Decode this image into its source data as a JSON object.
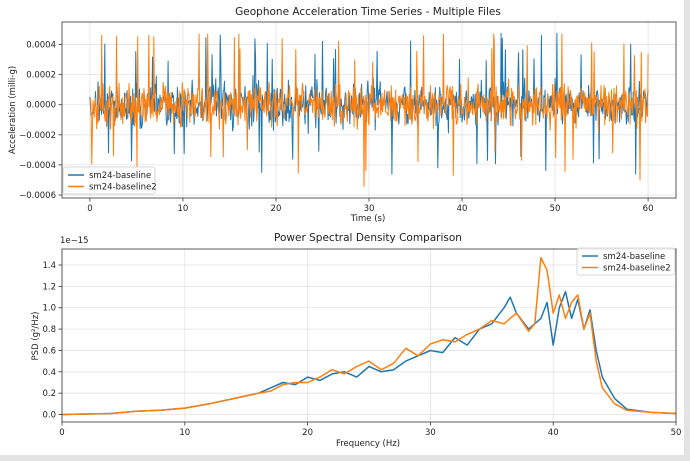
{
  "chart_data": [
    {
      "type": "line",
      "title": "Geophone Acceleration Time Series - Multiple Files",
      "xlabel": "Time (s)",
      "ylabel": "Acceleration (milli-g)",
      "xlim": [
        -3,
        63
      ],
      "ylim": [
        -0.00062,
        0.00055
      ],
      "xticks": [
        0,
        10,
        20,
        30,
        40,
        50,
        60
      ],
      "xtick_labels": [
        "0",
        "10",
        "20",
        "30",
        "40",
        "50",
        "60"
      ],
      "yticks": [
        -0.0006,
        -0.0004,
        -0.0002,
        0.0,
        0.0002,
        0.0004
      ],
      "ytick_labels": [
        "−0.0006",
        "−0.0004",
        "−0.0002",
        "0.0000",
        "0.0002",
        "0.0004"
      ],
      "grid": true,
      "legend_position": "lower-left",
      "series": [
        {
          "name": "sm24-baseline",
          "color": "#1f77b4",
          "style": "noise",
          "x_range": [
            0,
            60
          ],
          "envelope_typical": 0.00018,
          "max": 0.00052,
          "min": -0.00047
        },
        {
          "name": "sm24-baseline2",
          "color": "#ff7f0e",
          "style": "noise",
          "x_range": [
            0,
            60
          ],
          "envelope_typical": 0.00018,
          "max": 0.00047,
          "min": -0.00057
        }
      ]
    },
    {
      "type": "line",
      "title": "Power Spectral Density Comparison",
      "xlabel": "Frequency (Hz)",
      "ylabel": "PSD (g²/Hz)",
      "y_offset_label": "1e−15",
      "xlim": [
        0,
        50
      ],
      "ylim": [
        -0.07,
        1.55
      ],
      "xticks": [
        0,
        10,
        20,
        30,
        40,
        50
      ],
      "xtick_labels": [
        "0",
        "10",
        "20",
        "30",
        "40",
        "50"
      ],
      "yticks": [
        0.0,
        0.2,
        0.4,
        0.6,
        0.8,
        1.0,
        1.2,
        1.4
      ],
      "ytick_labels": [
        "0.0",
        "0.2",
        "0.4",
        "0.6",
        "0.8",
        "1.0",
        "1.2",
        "1.4"
      ],
      "grid": true,
      "legend_position": "top-right",
      "series": [
        {
          "name": "sm24-baseline",
          "color": "#1f77b4",
          "x": [
            0,
            2,
            4,
            5,
            6,
            8,
            10,
            12,
            14,
            16,
            17,
            18,
            19,
            20,
            21,
            22,
            23,
            24,
            25,
            26,
            27,
            28,
            29,
            30,
            31,
            32,
            33,
            34,
            35,
            36,
            36.5,
            37,
            38,
            39,
            39.5,
            40,
            40.5,
            41,
            41.5,
            42,
            42.5,
            43,
            43.5,
            44,
            45,
            46,
            48,
            50
          ],
          "y": [
            0.0,
            0.005,
            0.01,
            0.02,
            0.03,
            0.04,
            0.06,
            0.1,
            0.15,
            0.2,
            0.25,
            0.3,
            0.28,
            0.35,
            0.32,
            0.38,
            0.4,
            0.35,
            0.45,
            0.4,
            0.42,
            0.5,
            0.55,
            0.6,
            0.58,
            0.72,
            0.65,
            0.8,
            0.85,
            1.0,
            1.1,
            0.95,
            0.8,
            0.9,
            1.05,
            0.65,
            1.0,
            1.15,
            0.9,
            1.08,
            0.8,
            0.98,
            0.6,
            0.35,
            0.15,
            0.05,
            0.02,
            0.01
          ]
        },
        {
          "name": "sm24-baseline2",
          "color": "#ff7f0e",
          "x": [
            0,
            2,
            4,
            5,
            6,
            8,
            10,
            12,
            14,
            16,
            17,
            18,
            19,
            20,
            21,
            22,
            23,
            24,
            25,
            26,
            27,
            28,
            29,
            30,
            31,
            32,
            33,
            34,
            35,
            36,
            37,
            38,
            38.5,
            39,
            39.5,
            40,
            40.5,
            41,
            41.5,
            42,
            42.5,
            43,
            43.5,
            44,
            45,
            46,
            48,
            50
          ],
          "y": [
            0.0,
            0.005,
            0.01,
            0.02,
            0.03,
            0.04,
            0.06,
            0.1,
            0.15,
            0.2,
            0.22,
            0.28,
            0.3,
            0.3,
            0.35,
            0.42,
            0.38,
            0.45,
            0.5,
            0.42,
            0.48,
            0.62,
            0.55,
            0.66,
            0.7,
            0.68,
            0.75,
            0.8,
            0.88,
            0.85,
            0.95,
            0.78,
            0.85,
            1.47,
            1.35,
            0.95,
            1.12,
            0.9,
            1.05,
            1.12,
            0.8,
            0.95,
            0.5,
            0.25,
            0.1,
            0.04,
            0.02,
            0.01
          ]
        }
      ]
    }
  ]
}
